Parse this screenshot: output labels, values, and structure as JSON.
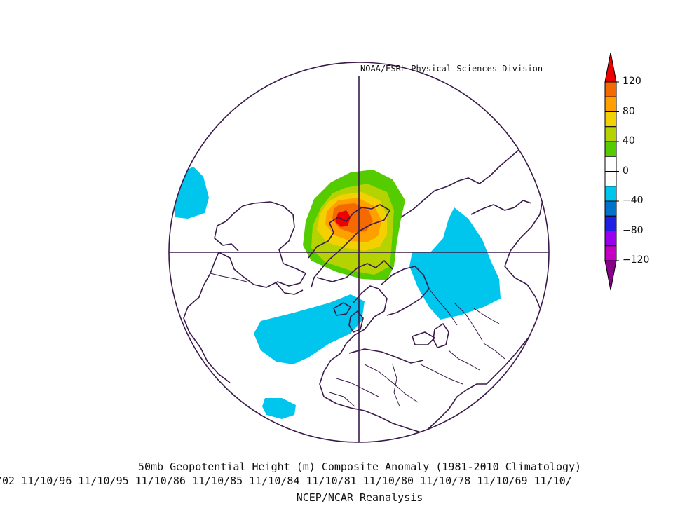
{
  "header": {
    "source": "NOAA/ESRL Physical Sciences Division"
  },
  "footer": {
    "title": "50mb Geopotential Height (m) Composite Anomaly (1981-2010 Climatology)",
    "dates": "/02 11/10/96 11/10/95 11/10/86 11/10/85 11/10/84 11/10/81 11/10/80 11/10/78 11/10/69 11/10/",
    "dataset": "NCEP/NCAR Reanalysis"
  },
  "colorbar": {
    "ticks": [
      "120",
      "80",
      "40",
      "0",
      "−40",
      "−80",
      "−120"
    ],
    "tick_values": [
      120,
      80,
      40,
      0,
      -40,
      -80,
      -120
    ],
    "levels": [
      {
        "range": "> 120",
        "color": "#ee0000"
      },
      {
        "range": "100 to 120",
        "color": "#f46a00"
      },
      {
        "range": "80 to 100",
        "color": "#ff9f00"
      },
      {
        "range": "60 to 80",
        "color": "#f3d100"
      },
      {
        "range": "40 to 60",
        "color": "#b5d300"
      },
      {
        "range": "20 to 40",
        "color": "#55cc00"
      },
      {
        "range": "0 to 20",
        "color": "#ffffff"
      },
      {
        "range": "-20 to 0",
        "color": "#ffffff"
      },
      {
        "range": "-40 to -20",
        "color": "#00c6ee"
      },
      {
        "range": "-60 to -40",
        "color": "#0074cc"
      },
      {
        "range": "-80 to -60",
        "color": "#1f1fe6"
      },
      {
        "range": "-100 to -80",
        "color": "#9a00ee"
      },
      {
        "range": "-120 to -100",
        "color": "#c400c4"
      },
      {
        "range": "< -120",
        "color": "#880088"
      }
    ]
  },
  "map": {
    "projection": "polar stereographic, North Pole centered",
    "colors": {
      "outline": "#3a1a4a",
      "positive_peak": "#ee0000",
      "negative": "#00c6ee"
    }
  }
}
